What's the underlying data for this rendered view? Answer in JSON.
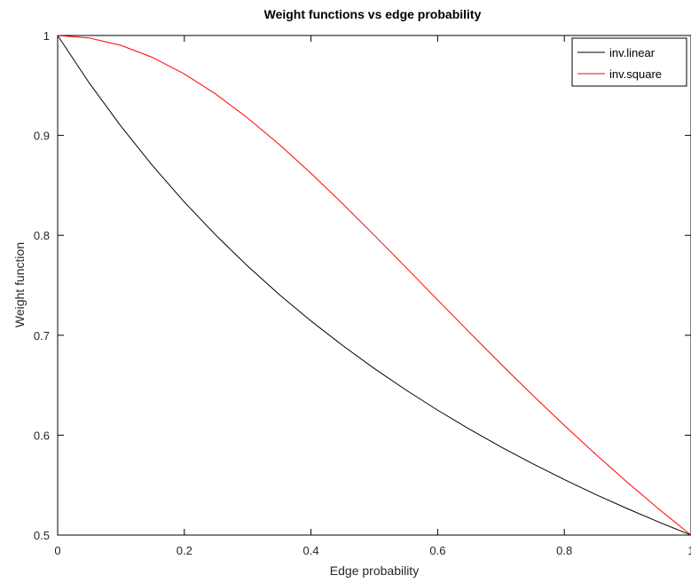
{
  "chart_data": {
    "type": "line",
    "title": "Weight functions vs edge probability",
    "xlabel": "Edge probability",
    "ylabel": "Weight function",
    "xlim": [
      0,
      1
    ],
    "ylim": [
      0.5,
      1
    ],
    "xticks": [
      0,
      0.2,
      0.4,
      0.6,
      0.8,
      1
    ],
    "xtick_labels": [
      "0",
      "0.2",
      "0.4",
      "0.6",
      "0.8",
      "1"
    ],
    "yticks": [
      0.5,
      0.6,
      0.7,
      0.8,
      0.9,
      1
    ],
    "ytick_labels": [
      "0.5",
      "0.6",
      "0.7",
      "0.8",
      "0.9",
      "1"
    ],
    "grid": false,
    "legend_position": "top-right",
    "x": [
      0,
      0.05,
      0.1,
      0.15,
      0.2,
      0.25,
      0.3,
      0.35,
      0.4,
      0.45,
      0.5,
      0.55,
      0.6,
      0.65,
      0.7,
      0.75,
      0.8,
      0.85,
      0.9,
      0.95,
      1
    ],
    "series": [
      {
        "name": "inv.linear",
        "color": "#000000",
        "values": [
          1.0,
          0.9524,
          0.9091,
          0.8696,
          0.8333,
          0.8,
          0.7692,
          0.7407,
          0.7143,
          0.6897,
          0.6667,
          0.6452,
          0.625,
          0.6061,
          0.5882,
          0.5714,
          0.5556,
          0.5405,
          0.5263,
          0.5128,
          0.5
        ]
      },
      {
        "name": "inv.square",
        "color": "#ff0000",
        "values": [
          1.0,
          0.9975,
          0.9901,
          0.978,
          0.9615,
          0.9412,
          0.9174,
          0.8909,
          0.8621,
          0.8316,
          0.8,
          0.7678,
          0.7353,
          0.703,
          0.6711,
          0.64,
          0.6098,
          0.5806,
          0.5525,
          0.5256,
          0.5
        ]
      }
    ]
  }
}
